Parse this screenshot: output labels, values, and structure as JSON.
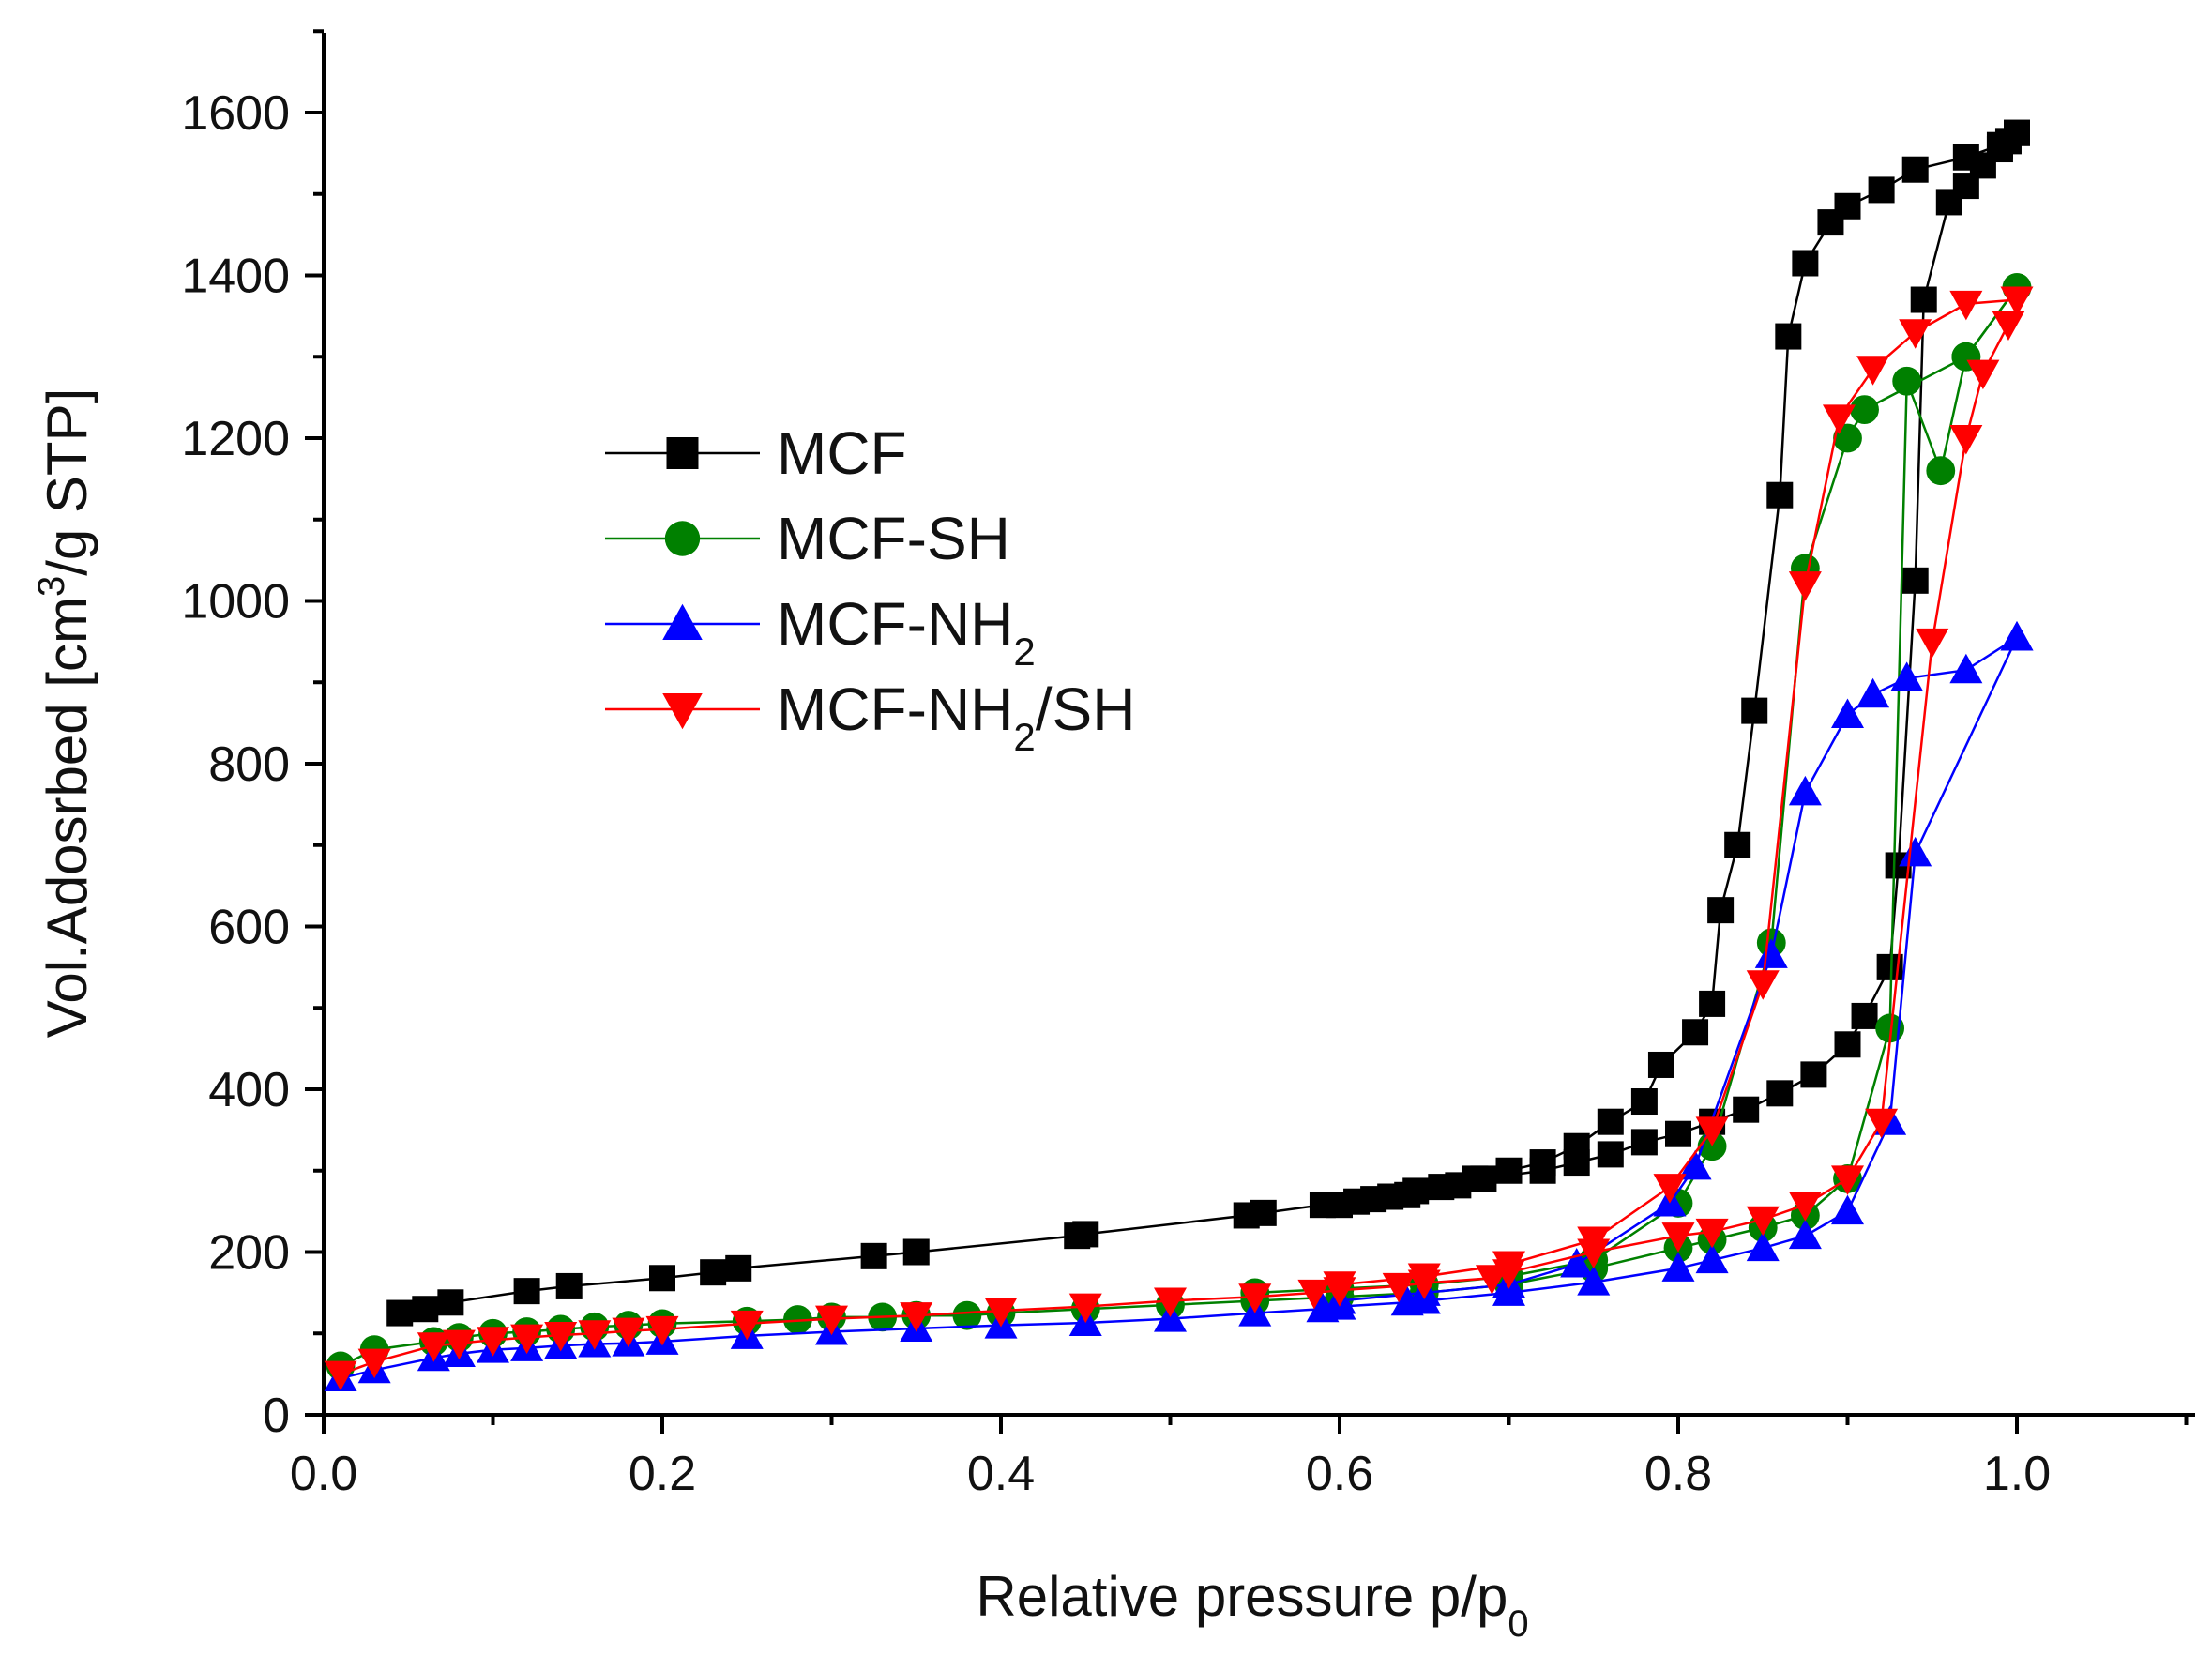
{
  "chart_data": {
    "type": "scatter",
    "title": "",
    "xlabel": {
      "base": "Relative pressure p/p",
      "sub": "0"
    },
    "ylabel": {
      "pre": "Vol.Adosrbed [cm",
      "sup": "3",
      "post": "/g  STP]"
    },
    "xlim": [
      0.0,
      1.1
    ],
    "ylim": [
      0,
      1700
    ],
    "xticks": [
      "0.0",
      "0.2",
      "0.4",
      "0.6",
      "0.8",
      "1.0"
    ],
    "yticks": [
      "0",
      "200",
      "400",
      "600",
      "800",
      "1000",
      "1200",
      "1400",
      "1600"
    ],
    "legend_position": "center-left",
    "series": [
      {
        "name": "MCF",
        "sub": "",
        "suffix": "",
        "color": "#000000",
        "marker": "square",
        "adsorption": [
          [
            0.045,
            125
          ],
          [
            0.06,
            130
          ],
          [
            0.075,
            138
          ],
          [
            0.12,
            152
          ],
          [
            0.145,
            158
          ],
          [
            0.2,
            168
          ],
          [
            0.23,
            175
          ],
          [
            0.245,
            180
          ],
          [
            0.325,
            195
          ],
          [
            0.35,
            200
          ],
          [
            0.445,
            220
          ],
          [
            0.45,
            222
          ],
          [
            0.545,
            245
          ],
          [
            0.555,
            248
          ],
          [
            0.59,
            258
          ],
          [
            0.61,
            262
          ],
          [
            0.63,
            268
          ],
          [
            0.645,
            275
          ],
          [
            0.67,
            282
          ],
          [
            0.685,
            290
          ],
          [
            0.72,
            300
          ],
          [
            0.74,
            310
          ],
          [
            0.76,
            320
          ],
          [
            0.78,
            335
          ],
          [
            0.8,
            345
          ],
          [
            0.82,
            360
          ],
          [
            0.84,
            375
          ],
          [
            0.86,
            395
          ],
          [
            0.88,
            418
          ],
          [
            0.9,
            455
          ],
          [
            0.91,
            490
          ],
          [
            0.925,
            550
          ],
          [
            0.93,
            675
          ],
          [
            0.94,
            1025
          ],
          [
            0.945,
            1370
          ],
          [
            0.96,
            1490
          ],
          [
            0.97,
            1510
          ],
          [
            0.98,
            1535
          ],
          [
            0.99,
            1555
          ],
          [
            0.995,
            1565
          ],
          [
            1.0,
            1575
          ]
        ],
        "desorption": [
          [
            1.0,
            1575
          ],
          [
            0.99,
            1560
          ],
          [
            0.97,
            1545
          ],
          [
            0.94,
            1530
          ],
          [
            0.92,
            1505
          ],
          [
            0.9,
            1485
          ],
          [
            0.89,
            1465
          ],
          [
            0.875,
            1415
          ],
          [
            0.865,
            1325
          ],
          [
            0.86,
            1130
          ],
          [
            0.845,
            865
          ],
          [
            0.835,
            700
          ],
          [
            0.825,
            620
          ],
          [
            0.82,
            505
          ],
          [
            0.81,
            470
          ],
          [
            0.79,
            430
          ],
          [
            0.78,
            385
          ],
          [
            0.76,
            360
          ],
          [
            0.74,
            330
          ],
          [
            0.72,
            310
          ],
          [
            0.7,
            300
          ],
          [
            0.68,
            290
          ],
          [
            0.66,
            280
          ],
          [
            0.64,
            270
          ],
          [
            0.62,
            265
          ],
          [
            0.6,
            258
          ]
        ]
      },
      {
        "name": "MCF-SH",
        "sub": "",
        "suffix": "",
        "color": "#008000",
        "marker": "circle",
        "adsorption": [
          [
            0.01,
            60
          ],
          [
            0.03,
            80
          ],
          [
            0.065,
            90
          ],
          [
            0.08,
            95
          ],
          [
            0.1,
            100
          ],
          [
            0.12,
            102
          ],
          [
            0.14,
            105
          ],
          [
            0.16,
            108
          ],
          [
            0.18,
            110
          ],
          [
            0.2,
            112
          ],
          [
            0.25,
            115
          ],
          [
            0.28,
            117
          ],
          [
            0.3,
            120
          ],
          [
            0.33,
            120
          ],
          [
            0.35,
            122
          ],
          [
            0.38,
            122
          ],
          [
            0.4,
            125
          ],
          [
            0.45,
            130
          ],
          [
            0.5,
            135
          ],
          [
            0.55,
            140
          ],
          [
            0.6,
            145
          ],
          [
            0.65,
            150
          ],
          [
            0.7,
            160
          ],
          [
            0.75,
            180
          ],
          [
            0.8,
            205
          ],
          [
            0.82,
            215
          ],
          [
            0.85,
            230
          ],
          [
            0.875,
            245
          ],
          [
            0.9,
            290
          ],
          [
            0.925,
            475
          ],
          [
            0.935,
            1270
          ],
          [
            0.955,
            1160
          ],
          [
            0.97,
            1300
          ],
          [
            1.0,
            1385
          ]
        ],
        "desorption": [
          [
            1.0,
            1385
          ],
          [
            0.97,
            1300
          ],
          [
            0.91,
            1235
          ],
          [
            0.9,
            1200
          ],
          [
            0.875,
            1040
          ],
          [
            0.855,
            580
          ],
          [
            0.82,
            330
          ],
          [
            0.8,
            260
          ],
          [
            0.75,
            190
          ],
          [
            0.7,
            170
          ],
          [
            0.65,
            160
          ],
          [
            0.6,
            155
          ],
          [
            0.55,
            150
          ]
        ]
      },
      {
        "name": "MCF-NH",
        "sub": "2",
        "suffix": "",
        "color": "#0000ff",
        "marker": "triangle-up",
        "adsorption": [
          [
            0.01,
            45
          ],
          [
            0.03,
            55
          ],
          [
            0.065,
            70
          ],
          [
            0.08,
            75
          ],
          [
            0.1,
            80
          ],
          [
            0.12,
            82
          ],
          [
            0.14,
            85
          ],
          [
            0.16,
            87
          ],
          [
            0.18,
            88
          ],
          [
            0.2,
            90
          ],
          [
            0.25,
            97
          ],
          [
            0.3,
            102
          ],
          [
            0.35,
            106
          ],
          [
            0.4,
            110
          ],
          [
            0.45,
            113
          ],
          [
            0.5,
            118
          ],
          [
            0.55,
            125
          ],
          [
            0.59,
            130
          ],
          [
            0.6,
            133
          ],
          [
            0.64,
            138
          ],
          [
            0.65,
            140
          ],
          [
            0.7,
            150
          ],
          [
            0.75,
            163
          ],
          [
            0.8,
            180
          ],
          [
            0.82,
            190
          ],
          [
            0.85,
            205
          ],
          [
            0.875,
            220
          ],
          [
            0.9,
            250
          ],
          [
            0.925,
            360
          ],
          [
            0.94,
            690
          ],
          [
            1.0,
            955
          ]
        ],
        "desorption": [
          [
            1.0,
            955
          ],
          [
            0.97,
            915
          ],
          [
            0.935,
            905
          ],
          [
            0.915,
            885
          ],
          [
            0.9,
            860
          ],
          [
            0.875,
            765
          ],
          [
            0.855,
            565
          ],
          [
            0.81,
            305
          ],
          [
            0.795,
            260
          ],
          [
            0.74,
            185
          ],
          [
            0.7,
            160
          ],
          [
            0.65,
            150
          ],
          [
            0.6,
            140
          ]
        ]
      },
      {
        "name": "MCF-NH",
        "sub": "2",
        "suffix": "/SH",
        "color": "#ff0000",
        "marker": "triangle-down",
        "adsorption": [
          [
            0.01,
            50
          ],
          [
            0.03,
            65
          ],
          [
            0.065,
            85
          ],
          [
            0.08,
            88
          ],
          [
            0.1,
            92
          ],
          [
            0.12,
            95
          ],
          [
            0.14,
            98
          ],
          [
            0.16,
            100
          ],
          [
            0.18,
            103
          ],
          [
            0.2,
            105
          ],
          [
            0.25,
            112
          ],
          [
            0.3,
            118
          ],
          [
            0.35,
            122
          ],
          [
            0.4,
            128
          ],
          [
            0.45,
            133
          ],
          [
            0.5,
            140
          ],
          [
            0.55,
            145
          ],
          [
            0.585,
            150
          ],
          [
            0.6,
            153
          ],
          [
            0.635,
            158
          ],
          [
            0.65,
            162
          ],
          [
            0.69,
            168
          ],
          [
            0.7,
            175
          ],
          [
            0.75,
            200
          ],
          [
            0.8,
            220
          ],
          [
            0.82,
            225
          ],
          [
            0.85,
            240
          ],
          [
            0.875,
            258
          ],
          [
            0.9,
            290
          ],
          [
            0.92,
            360
          ],
          [
            0.95,
            950
          ],
          [
            0.97,
            1200
          ],
          [
            0.98,
            1280
          ],
          [
            0.995,
            1340
          ]
        ],
        "desorption": [
          [
            1.0,
            1370
          ],
          [
            0.97,
            1365
          ],
          [
            0.94,
            1330
          ],
          [
            0.915,
            1285
          ],
          [
            0.895,
            1225
          ],
          [
            0.875,
            1020
          ],
          [
            0.85,
            530
          ],
          [
            0.82,
            350
          ],
          [
            0.795,
            280
          ],
          [
            0.75,
            215
          ],
          [
            0.7,
            185
          ],
          [
            0.65,
            170
          ],
          [
            0.6,
            160
          ]
        ]
      }
    ]
  }
}
